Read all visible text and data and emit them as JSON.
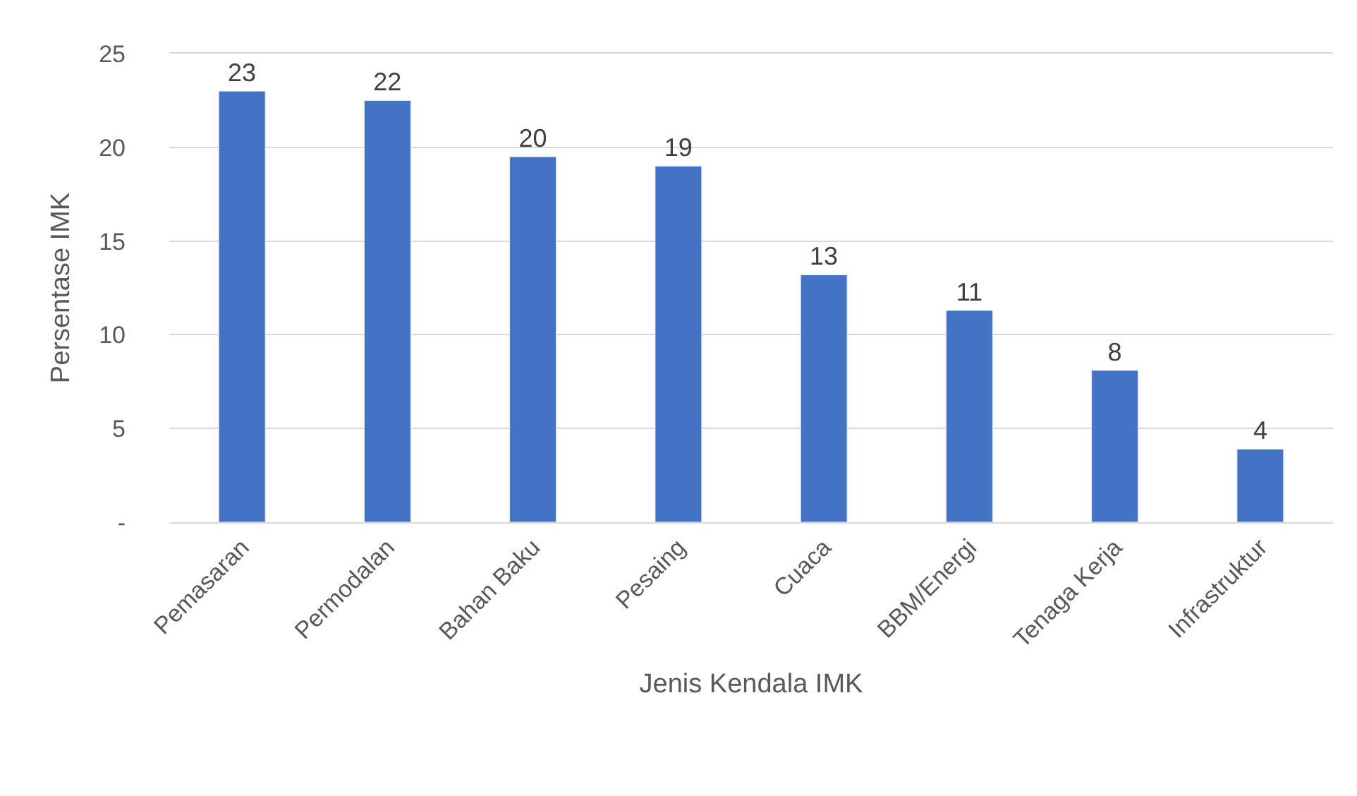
{
  "chart_data": {
    "type": "bar",
    "xlabel": "Jenis Kendala IMK",
    "ylabel": "Persentase IMK",
    "categories": [
      "Pemasaran",
      "Permodalan",
      "Bahan Baku",
      "Pesaing",
      "Cuaca",
      "BBM/Energi",
      "Tenaga Kerja",
      "Infrastruktur"
    ],
    "values": [
      23.0,
      22.5,
      19.5,
      19.0,
      13.2,
      11.3,
      8.1,
      3.9
    ],
    "value_labels": [
      "23",
      "22",
      "20",
      "19",
      "13",
      "11",
      "8",
      "4"
    ],
    "color": "#4472c4",
    "ylim": [
      0,
      25
    ],
    "yticks": [
      {
        "value": 0,
        "label": "-"
      },
      5,
      10,
      15,
      20,
      25
    ],
    "grid": "y"
  }
}
